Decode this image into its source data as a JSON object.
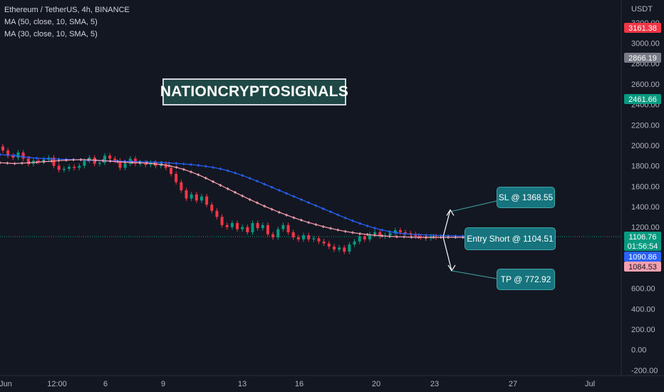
{
  "legend": {
    "symbol": "Ethereum / TetherUS, 4h, BINANCE",
    "ma1": "MA (50, close, 10, SMA, 5)",
    "ma2": "MA (30, close, 10, SMA, 5)"
  },
  "watermark": "NATIONCRYPTOSIGNALS",
  "annotations": {
    "sl": "SL @ 1368.55",
    "entry": "Entry Short @ 1104.51",
    "tp": "TP @ 772.92"
  },
  "price_axis": {
    "currency": "USDT",
    "badges": [
      {
        "label": "3161.38",
        "value": 3161.38,
        "color": "#f23645"
      },
      {
        "label": "2866.19",
        "value": 2866.19,
        "color": "#787b86"
      },
      {
        "label": "2461.66",
        "value": 2461.66,
        "color": "#089981"
      },
      {
        "label": "1106.76",
        "value": 1106.76,
        "color": "#089981"
      },
      {
        "label": "01:56:54",
        "value": 1106.76,
        "color": "#089981"
      },
      {
        "label": "1090.86",
        "value": 1090.86,
        "color": "#2962ff"
      },
      {
        "label": "1084.53",
        "value": 1084.53,
        "color": "#f7a1b0"
      }
    ]
  },
  "chart_data": {
    "type": "line",
    "yticks": [
      -200,
      0,
      200,
      400,
      600,
      800,
      1000,
      1200,
      1400,
      1600,
      1800,
      2000,
      2200,
      2400,
      2600,
      2800,
      3000,
      3200
    ],
    "ylim": [
      -220,
      3250
    ],
    "x_tick_labels": [
      "Jun",
      "12:00",
      "6",
      "9",
      "13",
      "16",
      "20",
      "23",
      "27",
      "Jul"
    ],
    "last_price": 1106.76,
    "candles": [
      [
        1990,
        1950
      ],
      [
        1950,
        1900
      ],
      [
        1900,
        1880
      ],
      [
        1880,
        1930
      ],
      [
        1930,
        1870
      ],
      [
        1870,
        1820
      ],
      [
        1820,
        1850
      ],
      [
        1850,
        1840
      ],
      [
        1840,
        1860
      ],
      [
        1860,
        1880
      ],
      [
        1880,
        1800
      ],
      [
        1800,
        1760
      ],
      [
        1760,
        1770
      ],
      [
        1770,
        1790
      ],
      [
        1790,
        1780
      ],
      [
        1780,
        1800
      ],
      [
        1800,
        1850
      ],
      [
        1850,
        1880
      ],
      [
        1880,
        1820
      ],
      [
        1820,
        1830
      ],
      [
        1830,
        1900
      ],
      [
        1900,
        1870
      ],
      [
        1870,
        1850
      ],
      [
        1850,
        1780
      ],
      [
        1780,
        1820
      ],
      [
        1820,
        1870
      ],
      [
        1870,
        1820
      ],
      [
        1820,
        1830
      ],
      [
        1830,
        1810
      ],
      [
        1810,
        1830
      ],
      [
        1830,
        1800
      ],
      [
        1800,
        1820
      ],
      [
        1820,
        1780
      ],
      [
        1780,
        1720
      ],
      [
        1720,
        1640
      ],
      [
        1640,
        1560
      ],
      [
        1560,
        1480
      ],
      [
        1480,
        1520
      ],
      [
        1520,
        1460
      ],
      [
        1460,
        1500
      ],
      [
        1500,
        1420
      ],
      [
        1420,
        1360
      ],
      [
        1360,
        1300
      ],
      [
        1300,
        1220
      ],
      [
        1220,
        1200
      ],
      [
        1200,
        1240
      ],
      [
        1240,
        1180
      ],
      [
        1180,
        1200
      ],
      [
        1200,
        1150
      ],
      [
        1150,
        1240
      ],
      [
        1240,
        1190
      ],
      [
        1190,
        1220
      ],
      [
        1220,
        1130
      ],
      [
        1130,
        1100
      ],
      [
        1100,
        1180
      ],
      [
        1180,
        1220
      ],
      [
        1220,
        1150
      ],
      [
        1150,
        1100
      ],
      [
        1100,
        1080
      ],
      [
        1080,
        1120
      ],
      [
        1120,
        1080
      ],
      [
        1080,
        1090
      ],
      [
        1090,
        1060
      ],
      [
        1060,
        1040
      ],
      [
        1040,
        1010
      ],
      [
        1010,
        980
      ],
      [
        980,
        1000
      ],
      [
        1000,
        960
      ],
      [
        960,
        1030
      ],
      [
        1030,
        1060
      ],
      [
        1060,
        1110
      ],
      [
        1110,
        1080
      ],
      [
        1080,
        1130
      ],
      [
        1130,
        1150
      ],
      [
        1150,
        1110
      ],
      [
        1110,
        1120
      ],
      [
        1120,
        1140
      ],
      [
        1140,
        1170
      ],
      [
        1170,
        1150
      ],
      [
        1150,
        1140
      ],
      [
        1140,
        1130
      ],
      [
        1130,
        1110
      ],
      [
        1110,
        1100
      ],
      [
        1100,
        1090
      ],
      [
        1090,
        1110
      ],
      [
        1110,
        1100
      ]
    ],
    "series": [
      {
        "name": "MA (50, close, 10, SMA, 5)",
        "color": "#2962ff",
        "values": [
          1910,
          1905,
          1900,
          1890,
          1880,
          1875,
          1870,
          1868,
          1865,
          1862,
          1860,
          1858,
          1855,
          1852,
          1850,
          1848,
          1846,
          1844,
          1842,
          1840,
          1838,
          1835,
          1832,
          1828,
          1823,
          1818,
          1812,
          1804,
          1795,
          1784,
          1770,
          1752,
          1730,
          1705,
          1678,
          1650,
          1620,
          1590,
          1560,
          1530,
          1500,
          1470,
          1440,
          1410,
          1380,
          1350,
          1320,
          1290,
          1262,
          1236,
          1212,
          1190,
          1172,
          1156,
          1144,
          1136,
          1130,
          1126,
          1123,
          1120,
          1118,
          1116,
          1114,
          1112,
          1110
        ]
      },
      {
        "name": "MA (30, close, 10, SMA, 5)",
        "color": "#f7a1b0",
        "values": [
          1830,
          1826,
          1822,
          1826,
          1830,
          1835,
          1840,
          1845,
          1850,
          1855,
          1858,
          1860,
          1858,
          1855,
          1850,
          1845,
          1840,
          1835,
          1832,
          1830,
          1826,
          1820,
          1812,
          1800,
          1785,
          1765,
          1740,
          1712,
          1680,
          1645,
          1610,
          1575,
          1540,
          1505,
          1470,
          1438,
          1405,
          1375,
          1345,
          1318,
          1292,
          1268,
          1245,
          1225,
          1205,
          1188,
          1172,
          1158,
          1146,
          1136,
          1128,
          1120,
          1115,
          1110,
          1106,
          1104,
          1102,
          1100,
          1100,
          1100,
          1100,
          1100,
          1100,
          1100,
          1100
        ]
      }
    ],
    "levels": {
      "stop_loss": 1368.55,
      "entry": 1104.51,
      "take_profit": 772.92
    }
  }
}
